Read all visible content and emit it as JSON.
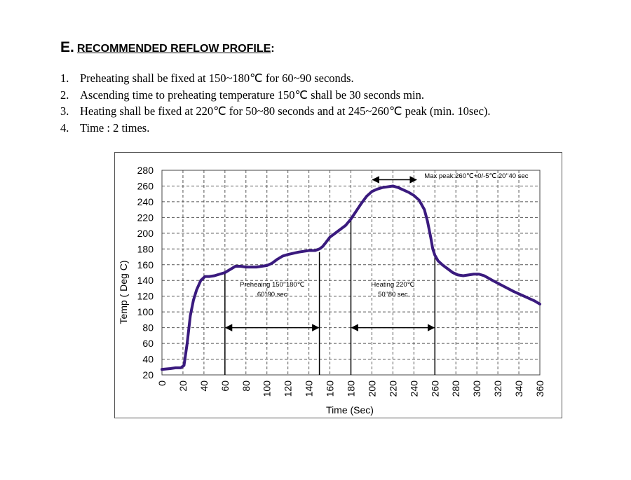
{
  "section": {
    "letter": "E.",
    "title": "RECOMMENDED REFLOW PROFILE",
    "colon": ":"
  },
  "requirements": [
    {
      "num": "1.",
      "text": "Preheating shall be fixed at 150~180℃ for 60~90 seconds."
    },
    {
      "num": "2.",
      "text": "Ascending time to preheating temperature 150℃ shall be 30 seconds min."
    },
    {
      "num": "3.",
      "text": "Heating shall be fixed at 220℃ for 50~80 seconds and at 245~260℃ peak (min. 10sec)."
    },
    {
      "num": "4.",
      "text": "Time : 2 times."
    }
  ],
  "chart_data": {
    "type": "line",
    "xlabel": "Time (Sec)",
    "ylabel": "Temp ( Deg C)",
    "xlim": [
      0,
      360
    ],
    "ylim": [
      20,
      280
    ],
    "x_ticks": [
      0,
      20,
      40,
      60,
      80,
      100,
      120,
      140,
      160,
      180,
      200,
      220,
      240,
      260,
      280,
      300,
      320,
      340,
      360
    ],
    "y_ticks": [
      20,
      40,
      60,
      80,
      100,
      120,
      140,
      160,
      180,
      200,
      220,
      240,
      260,
      280
    ],
    "grid": true,
    "line_color": "#3a1a7e",
    "series": [
      {
        "x": [
          0,
          8,
          13,
          18,
          21,
          24,
          27,
          30,
          33,
          37,
          41,
          45,
          50,
          55,
          60,
          65,
          70,
          75,
          80,
          90,
          100,
          105,
          110,
          115,
          120,
          130,
          140,
          146,
          150,
          153,
          156,
          160,
          165,
          170,
          175,
          180,
          185,
          190,
          195,
          200,
          205,
          210,
          215,
          220,
          225,
          230,
          235,
          240,
          245,
          250,
          253,
          256,
          258,
          260,
          263,
          267,
          272,
          277,
          282,
          287,
          292,
          297,
          302,
          307,
          315,
          325,
          335,
          345,
          355,
          360
        ],
        "y": [
          27,
          28,
          29,
          29,
          32,
          60,
          95,
          115,
          128,
          140,
          145,
          145,
          146,
          148,
          150,
          154,
          158,
          158,
          157,
          157,
          159,
          162,
          167,
          171,
          173,
          176,
          178,
          178,
          180,
          183,
          188,
          195,
          200,
          205,
          210,
          218,
          228,
          238,
          247,
          253,
          256,
          258,
          259,
          260,
          258,
          255,
          252,
          248,
          242,
          230,
          215,
          195,
          180,
          172,
          165,
          160,
          155,
          150,
          147,
          146,
          147,
          148,
          148,
          146,
          140,
          133,
          126,
          120,
          114,
          110
        ]
      }
    ],
    "markers": [
      {
        "x": 60
      },
      {
        "x": 150
      },
      {
        "x": 180
      },
      {
        "x": 260
      }
    ],
    "arrows": [
      {
        "x1": 60,
        "x2": 150,
        "y": 80
      },
      {
        "x1": 180,
        "x2": 260,
        "y": 80
      },
      {
        "x1": 200,
        "x2": 243,
        "y": 268
      }
    ],
    "annotations": [
      {
        "lines": [
          "Preheaing 150’’180℃",
          "60’’90 sec"
        ],
        "x": 105,
        "y": 132
      },
      {
        "lines": [
          "Heating 220℃",
          "50’’80 sec"
        ],
        "x": 220,
        "y": 132
      },
      {
        "lines": [
          "Max peak:260℃+0/-5℃ 20’’40 sec"
        ],
        "x": 250,
        "y": 270
      }
    ]
  }
}
